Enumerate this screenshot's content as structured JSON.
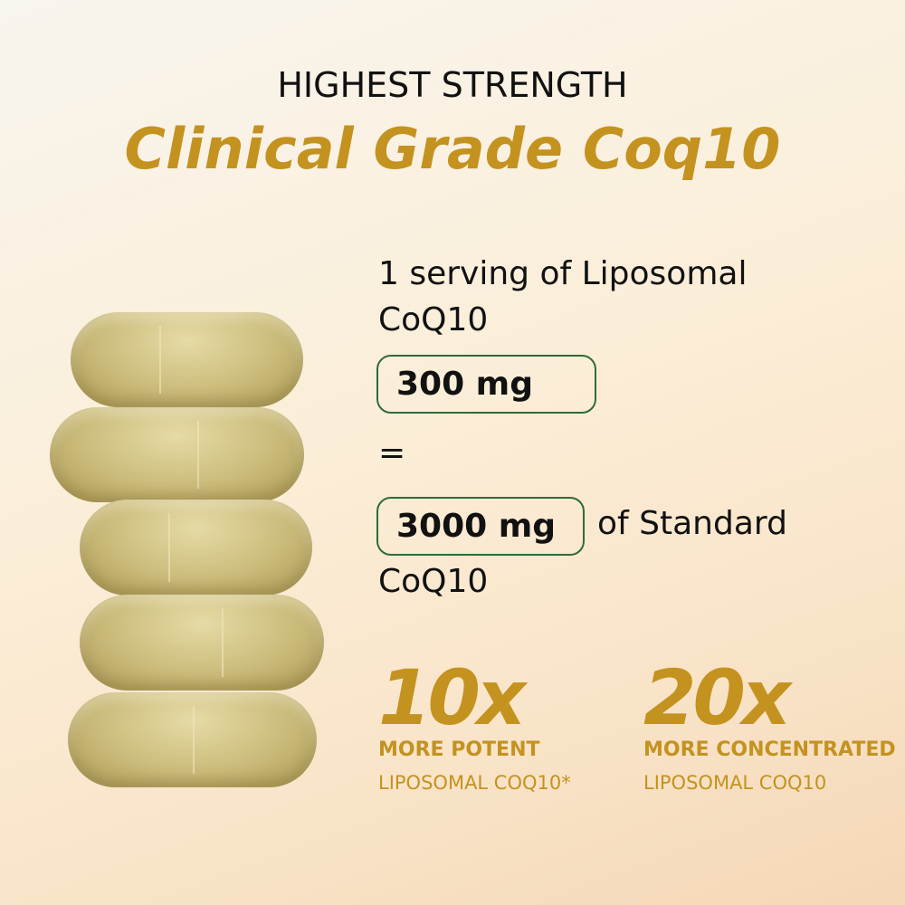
{
  "header": {
    "kicker": "HIGHEST STRENGTH",
    "title": "Clinical Grade Coq10"
  },
  "comparison": {
    "line1": "1 serving of Liposomal",
    "line2": "CoQ10",
    "amount_liposomal": "300 mg",
    "equals": "=",
    "amount_standard": "3000 mg",
    "standard_suffix": "of Standard",
    "line_last": "CoQ10"
  },
  "stats": [
    {
      "value": "10x",
      "label": "MORE POTENT",
      "sub": "LIPOSOMAL COQ10*"
    },
    {
      "value": "20x",
      "label": "MORE CONCENTRATED",
      "sub": "LIPOSOMAL COQ10"
    }
  ],
  "colors": {
    "accent": "#c4921f",
    "box_border": "#2f6a3c"
  }
}
